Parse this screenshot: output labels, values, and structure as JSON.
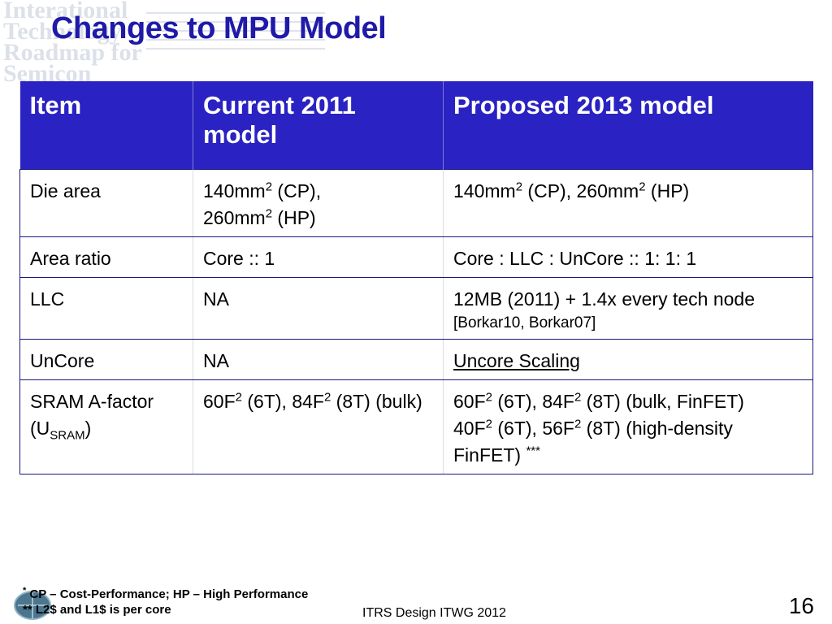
{
  "title": "Changes to MPU Model",
  "table": {
    "headers": [
      "Item",
      "Current 2011 model",
      "Proposed 2013 model"
    ],
    "rows": {
      "die_area": {
        "item": "Die area",
        "current": {
          "a1": "140mm",
          "a1_sup": "2",
          "a2": " (CP),",
          "b1": "260mm",
          "b1_sup": "2",
          "b2": " (HP)"
        },
        "proposed": {
          "a1": "140mm",
          "a1_sup": "2",
          "a2": " (CP), 260mm",
          "a2_sup": "2",
          "a3": " (HP)"
        }
      },
      "area_ratio": {
        "item": "Area ratio",
        "current": "Core :: 1",
        "proposed": "Core : LLC : UnCore :: 1: 1: 1"
      },
      "llc": {
        "item": "LLC",
        "current": "NA",
        "proposed": "12MB (2011) + 1.4x every tech node",
        "proposed_ref": "[Borkar10, Borkar07]"
      },
      "uncore": {
        "item": "UnCore",
        "current": "NA",
        "proposed_link": "Uncore Scaling"
      },
      "sram": {
        "item_main": "SRAM A-factor (U",
        "item_sub": "SRAM",
        "item_end": ")",
        "current": {
          "p1": "60F",
          "s1": "2",
          "p2": " (6T), 84F",
          "s2": "2",
          "p3": " (8T) (bulk)"
        },
        "proposed": {
          "p1": "60F",
          "s1": "2",
          "p2": " (6T), 84F",
          "s2": "2",
          "p3": " (8T) (bulk, FinFET)",
          "q1": "40F",
          "t1": "2",
          "q2": " (6T), 56F",
          "t2": "2",
          "q3": " (8T) (high-density FinFET) ",
          "stars": "***"
        }
      }
    }
  },
  "footnotes": {
    "line1_mark": "*",
    "line1": " CP – Cost-Performance; HP – High Performance",
    "line2": "** L2$ and L1$ is per core"
  },
  "footer": {
    "center": "ITRS Design ITWG 2012",
    "page_number": "16"
  },
  "colors": {
    "title": "#1f1aa8",
    "header_bg": "#2a22c2",
    "border": "#1a1680"
  }
}
